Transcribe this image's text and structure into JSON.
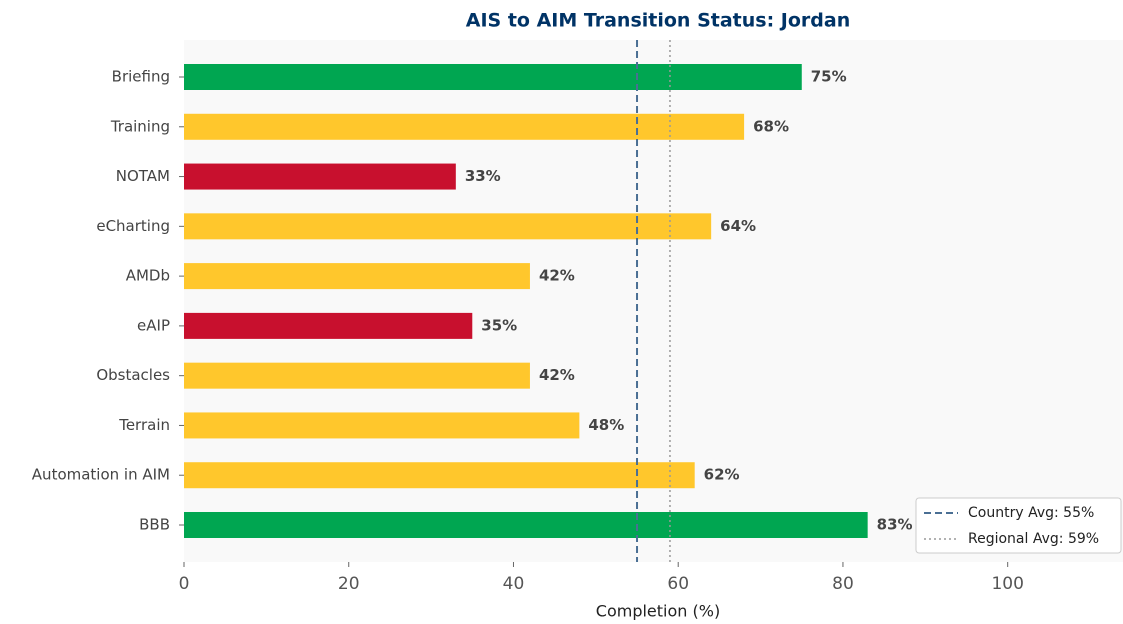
{
  "chart_data": {
    "type": "barh",
    "title": "AIS to AIM Transition Status: Jordan",
    "xlabel": "Completion (%)",
    "categories": [
      "Briefing",
      "Training",
      "NOTAM",
      "eCharting",
      "AMDb",
      "eAIP",
      "Obstacles",
      "Terrain",
      "Automation in AIM",
      "BBB"
    ],
    "values": [
      75,
      68,
      33,
      64,
      42,
      35,
      42,
      48,
      62,
      83
    ],
    "value_labels": [
      "75%",
      "68%",
      "33%",
      "64%",
      "42%",
      "35%",
      "42%",
      "48%",
      "62%",
      "83%"
    ],
    "colors": [
      "#00a651",
      "#ffc72c",
      "#c8102e",
      "#ffc72c",
      "#ffc72c",
      "#c8102e",
      "#ffc72c",
      "#ffc72c",
      "#ffc72c",
      "#00a651"
    ],
    "xlim": [
      0,
      114
    ],
    "xticks": [
      0,
      20,
      40,
      60,
      80,
      100
    ],
    "reference_lines": [
      {
        "label": "Country Avg: 55%",
        "value": 55,
        "color": "#4a6f94",
        "style": "dashed"
      },
      {
        "label": "Regional Avg: 59%",
        "value": 59,
        "color": "#999999",
        "style": "dotted"
      }
    ],
    "legend": "lower right"
  }
}
